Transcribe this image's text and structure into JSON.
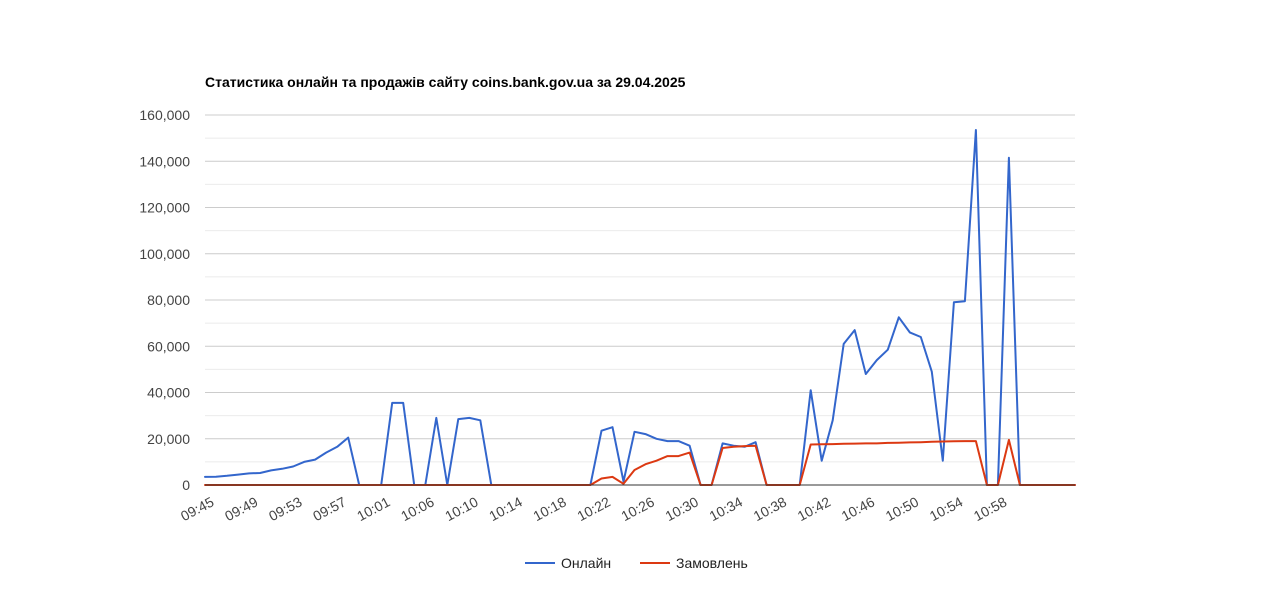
{
  "chart_data": {
    "type": "line",
    "title": "Статистика онлайн та продажів сайту coins.bank.gov.ua за 29.04.2025",
    "xlabel": "",
    "ylabel": "",
    "ylim": [
      0,
      160000
    ],
    "y_ticks": [
      0,
      20000,
      40000,
      60000,
      80000,
      100000,
      120000,
      140000,
      160000
    ],
    "y_tick_labels": [
      "0",
      "20,000",
      "40,000",
      "60,000",
      "80,000",
      "100,000",
      "120,000",
      "140,000",
      "160,000"
    ],
    "x_tick_labels": [
      "09:45",
      "09:49",
      "09:53",
      "09:57",
      "10:01",
      "10:06",
      "10:10",
      "10:14",
      "10:18",
      "10:22",
      "10:26",
      "10:30",
      "10:34",
      "10:38",
      "10:42",
      "10:46",
      "10:50",
      "10:54",
      "10:58"
    ],
    "x_tick_every": 4,
    "grid": true,
    "legend_position": "bottom",
    "series": [
      {
        "name": "Онлайн",
        "color": "#3366cc",
        "values": [
          3500,
          3600,
          4000,
          4500,
          5000,
          5200,
          6300,
          7000,
          8000,
          10000,
          11000,
          14000,
          16500,
          20500,
          0,
          0,
          0,
          35500,
          35500,
          0,
          0,
          29000,
          0,
          28500,
          29000,
          28000,
          0,
          0,
          0,
          0,
          0,
          0,
          0,
          0,
          0,
          0,
          23500,
          25000,
          1500,
          23000,
          22000,
          20000,
          19000,
          19000,
          17000,
          0,
          0,
          18000,
          17000,
          16500,
          18500,
          0,
          0,
          0,
          0,
          41000,
          10500,
          28000,
          61000,
          67000,
          48000,
          54000,
          58500,
          72500,
          66000,
          64000,
          49000,
          10500,
          79000,
          79500,
          153500,
          0,
          0,
          141500,
          0,
          0,
          0,
          0,
          0,
          0
        ]
      },
      {
        "name": "Замовлень",
        "color": "#dc3912",
        "values": [
          0,
          0,
          0,
          0,
          0,
          0,
          0,
          0,
          0,
          0,
          0,
          0,
          0,
          0,
          0,
          0,
          0,
          0,
          0,
          0,
          0,
          0,
          0,
          0,
          0,
          0,
          0,
          0,
          0,
          0,
          0,
          0,
          0,
          0,
          0,
          0,
          2800,
          3500,
          500,
          6500,
          9000,
          10500,
          12500,
          12500,
          14000,
          0,
          0,
          16000,
          16500,
          16800,
          17000,
          0,
          0,
          0,
          0,
          17500,
          17600,
          17700,
          17800,
          17900,
          18000,
          18000,
          18200,
          18300,
          18400,
          18500,
          18700,
          18800,
          18900,
          19000,
          19000,
          0,
          0,
          19500,
          0,
          0,
          0,
          0,
          0,
          0
        ]
      }
    ]
  }
}
